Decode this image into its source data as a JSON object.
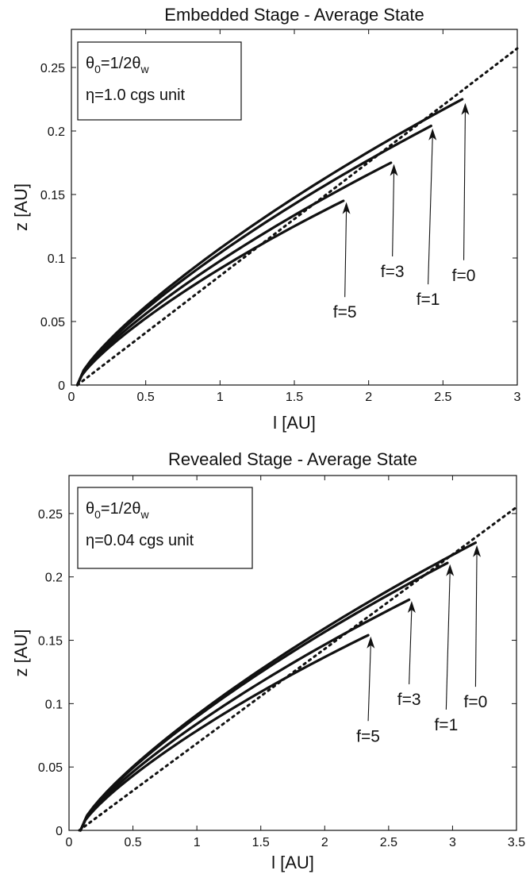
{
  "chart_data": [
    {
      "type": "line",
      "title": "Embedded Stage - Average State",
      "xlabel": "l [AU]",
      "ylabel": "z [AU]",
      "xlim": [
        0,
        3
      ],
      "ylim": [
        0,
        0.28
      ],
      "xticks": [
        0,
        0.5,
        1,
        1.5,
        2,
        2.5,
        3
      ],
      "xtick_labels": [
        "0",
        "0.5",
        "1",
        "1.5",
        "2",
        "2.5",
        "3"
      ],
      "yticks": [
        0,
        0.05,
        0.1,
        0.15,
        0.2,
        0.25
      ],
      "ytick_labels": [
        "0",
        "0.05",
        "0.1",
        "0.15",
        "0.2",
        "0.25"
      ],
      "grid": false,
      "legend_placement": "top-left",
      "legend_lines": [
        {
          "prefix": "θ",
          "sub1": "0",
          "mid": "=1/2θ",
          "sub2": "w"
        },
        {
          "prefix": "η=1.0 cgs unit",
          "sub1": "",
          "mid": "",
          "sub2": ""
        }
      ],
      "reference_line": {
        "style": "dotted",
        "x": [
          0.04,
          3.0
        ],
        "y": [
          0.0,
          0.265
        ]
      },
      "series": [
        {
          "label": "f=0",
          "x_start": 0.04,
          "x_end": 2.63,
          "y_end": 0.225,
          "text_x": 2.64,
          "text_y": 0.082,
          "arrow_x": 2.65,
          "arrow_y": 0.222
        },
        {
          "label": "f=1",
          "x_start": 0.04,
          "x_end": 2.42,
          "y_end": 0.204,
          "text_x": 2.4,
          "text_y": 0.063,
          "arrow_x": 2.43,
          "arrow_y": 0.202
        },
        {
          "label": "f=3",
          "x_start": 0.04,
          "x_end": 2.15,
          "y_end": 0.175,
          "text_x": 2.16,
          "text_y": 0.085,
          "arrow_x": 2.17,
          "arrow_y": 0.174
        },
        {
          "label": "f=5",
          "x_start": 0.04,
          "x_end": 1.83,
          "y_end": 0.145,
          "text_x": 1.84,
          "text_y": 0.053,
          "arrow_x": 1.85,
          "arrow_y": 0.144
        }
      ]
    },
    {
      "type": "line",
      "title": "Revealed Stage - Average State",
      "xlabel": "l [AU]",
      "ylabel": "z [AU]",
      "xlim": [
        0,
        3.5
      ],
      "ylim": [
        0,
        0.28
      ],
      "xticks": [
        0,
        0.5,
        1,
        1.5,
        2,
        2.5,
        3,
        3.5
      ],
      "xtick_labels": [
        "0",
        "0.5",
        "1",
        "1.5",
        "2",
        "2.5",
        "3",
        "3.5"
      ],
      "yticks": [
        0,
        0.05,
        0.1,
        0.15,
        0.2,
        0.25
      ],
      "ytick_labels": [
        "0",
        "0.05",
        "0.1",
        "0.15",
        "0.2",
        "0.25"
      ],
      "grid": false,
      "legend_placement": "top-left",
      "legend_lines": [
        {
          "prefix": "θ",
          "sub1": "0",
          "mid": "=1/2θ",
          "sub2": "w"
        },
        {
          "prefix": "η=0.04 cgs unit",
          "sub1": "",
          "mid": "",
          "sub2": ""
        }
      ],
      "reference_line": {
        "style": "dotted",
        "x": [
          0.08,
          3.5
        ],
        "y": [
          0.0,
          0.255
        ]
      },
      "series": [
        {
          "label": "f=0",
          "x_start": 0.09,
          "x_end": 3.18,
          "y_end": 0.227,
          "text_x": 3.18,
          "text_y": 0.097,
          "arrow_x": 3.19,
          "arrow_y": 0.225
        },
        {
          "label": "f=1",
          "x_start": 0.09,
          "x_end": 2.96,
          "y_end": 0.211,
          "text_x": 2.95,
          "text_y": 0.079,
          "arrow_x": 2.98,
          "arrow_y": 0.21
        },
        {
          "label": "f=3",
          "x_start": 0.09,
          "x_end": 2.66,
          "y_end": 0.182,
          "text_x": 2.66,
          "text_y": 0.099,
          "arrow_x": 2.68,
          "arrow_y": 0.181
        },
        {
          "label": "f=5",
          "x_start": 0.09,
          "x_end": 2.34,
          "y_end": 0.154,
          "text_x": 2.34,
          "text_y": 0.07,
          "arrow_x": 2.36,
          "arrow_y": 0.153
        }
      ]
    }
  ]
}
